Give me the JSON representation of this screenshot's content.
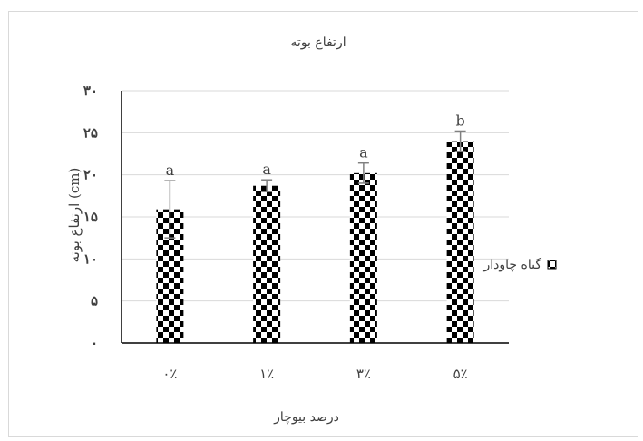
{
  "chart_data": {
    "type": "bar",
    "title": "ارتفاع بوته",
    "xlabel": "درصد بیوچار",
    "ylabel": "ارتفاع بوته (cm)",
    "categories": [
      "۰٪",
      "۱٪",
      "۳٪",
      "۵٪"
    ],
    "series": [
      {
        "name": "گیاه چاودار",
        "values": [
          15.9,
          18.7,
          20.2,
          24.0
        ],
        "errors": [
          3.4,
          0.7,
          1.2,
          1.2
        ],
        "letters": [
          "a",
          "a",
          "a",
          "b"
        ]
      }
    ],
    "ylim": [
      0,
      30
    ],
    "yticks": [
      0,
      5,
      10,
      15,
      20,
      25,
      30
    ],
    "ytick_labels": [
      "۰",
      "۵",
      "۱۰",
      "۱۵",
      "۲۰",
      "۲۵",
      "۳۰"
    ],
    "grid": true,
    "legend_position": "right",
    "colors": {
      "bar_fill": "#000000",
      "bar_check": "#ffffff",
      "grid": "#d9d9d9",
      "axis": "#000000",
      "text": "#404040"
    }
  }
}
